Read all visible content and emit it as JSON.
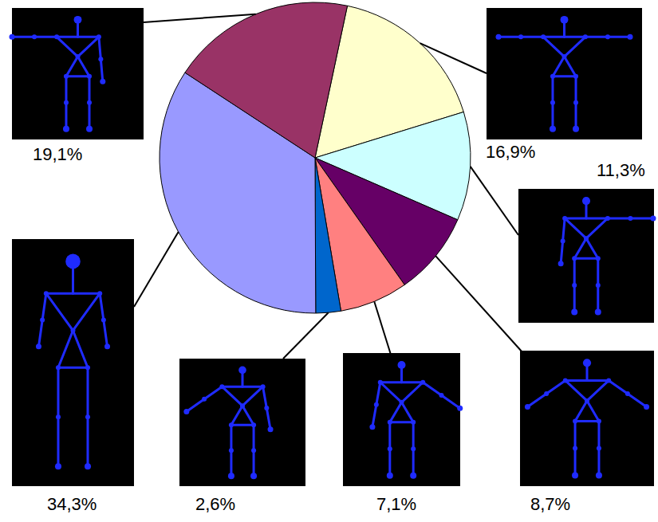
{
  "chart_data": {
    "type": "pie",
    "values": [
      16.9,
      11.3,
      8.7,
      7.1,
      2.6,
      34.3,
      19.1
    ],
    "value_labels": [
      "16,9%",
      "11,3%",
      "8,7%",
      "7,1%",
      "2,6%",
      "34,3%",
      "19,1%"
    ],
    "colors": [
      "#ffffcc",
      "#ccffff",
      "#660066",
      "#ff8080",
      "#0066cc",
      "#9999ff",
      "#993366"
    ],
    "data_labels": true
  }
}
